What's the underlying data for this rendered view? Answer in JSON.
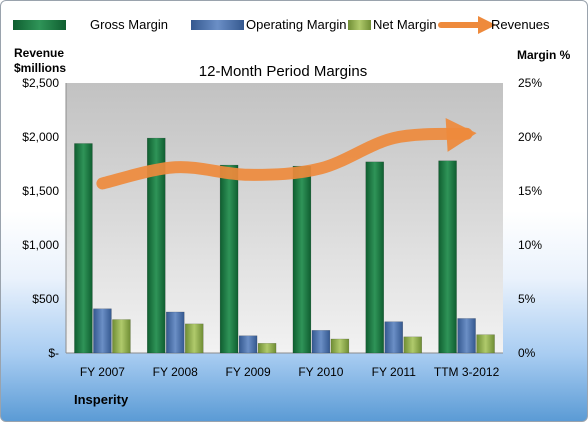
{
  "chart_data": {
    "type": "bar",
    "title": "12-Month Period Margins",
    "categories": [
      "FY 2007",
      "FY 2008",
      "FY 2009",
      "FY 2010",
      "FY 2011",
      "TTM 3-2012"
    ],
    "left_axis": {
      "label_line1": "Revenue",
      "label_line2": "$millions",
      "ticks": [
        "$-",
        "$500",
        "$1,000",
        "$1,500",
        "$2,000",
        "$2,500"
      ],
      "ylim": [
        0,
        2500
      ]
    },
    "right_axis": {
      "label": "Margin %",
      "ticks": [
        "0%",
        "5%",
        "10%",
        "15%",
        "20%",
        "25%"
      ],
      "ylim": [
        0,
        25
      ]
    },
    "series": [
      {
        "name": "Gross Margin",
        "type": "bar",
        "axis": "right",
        "color": "#1e7a45",
        "values": [
          19.4,
          19.9,
          17.4,
          17.3,
          17.7,
          17.8
        ]
      },
      {
        "name": "Operating Margin",
        "type": "bar",
        "axis": "right",
        "color": "#4f74b0",
        "values": [
          4.1,
          3.8,
          1.6,
          2.1,
          2.9,
          3.2
        ]
      },
      {
        "name": "Net Margin",
        "type": "bar",
        "axis": "right",
        "color": "#8eaf48",
        "values": [
          3.1,
          2.7,
          0.9,
          1.3,
          1.5,
          1.7
        ]
      },
      {
        "name": "Revenues",
        "type": "line",
        "axis": "left",
        "color": "#ee8a3c",
        "values": [
          1570,
          1720,
          1650,
          1710,
          1990,
          2030
        ]
      }
    ],
    "grid": false,
    "legend": "top"
  },
  "footer": {
    "company": "Insperity"
  }
}
